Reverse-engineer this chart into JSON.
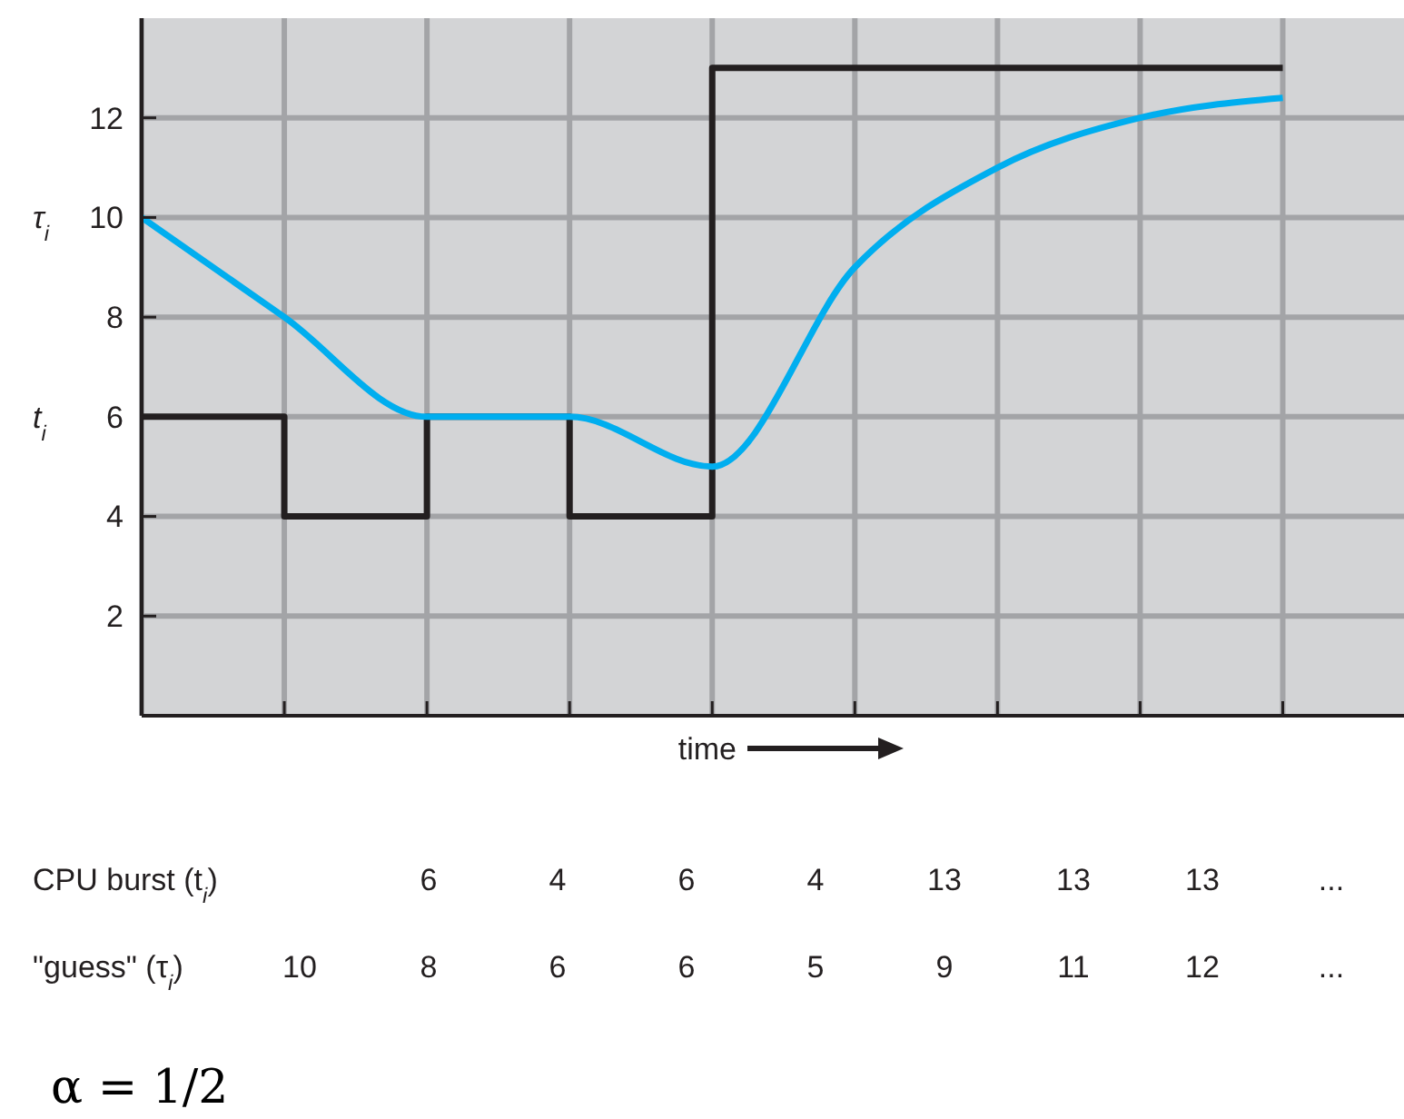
{
  "chart_data": {
    "type": "line",
    "xlabel": "time",
    "categories": [
      null,
      null,
      null,
      null,
      null,
      null,
      null,
      null,
      null
    ],
    "ylim": [
      0,
      14
    ],
    "yticks": [
      2,
      4,
      6,
      8,
      10,
      12
    ],
    "tick_labels": "y",
    "grid": true,
    "marker": "none",
    "line_style": "solid",
    "series": [
      {
        "type": "step",
        "color": "#231f20",
        "values": [
          6,
          4,
          6,
          4,
          13,
          13,
          13,
          13,
          13
        ]
      },
      {
        "color": "#00aeef",
        "values": [
          10,
          8,
          6,
          6,
          5,
          9,
          11,
          12,
          12.4
        ]
      }
    ],
    "annotations": [
      "t$_{i}$",
      "τ$_{i}$",
      "CPU burst (t$_{i}$)\t\t6\t4\t6\t4\t13\t13\t13\t...",
      "\"guess\" (τ$_{i}$)\t10\t8\t6\t6\t5\t9\t11\t12\t...",
      "α = 1/2"
    ]
  }
}
